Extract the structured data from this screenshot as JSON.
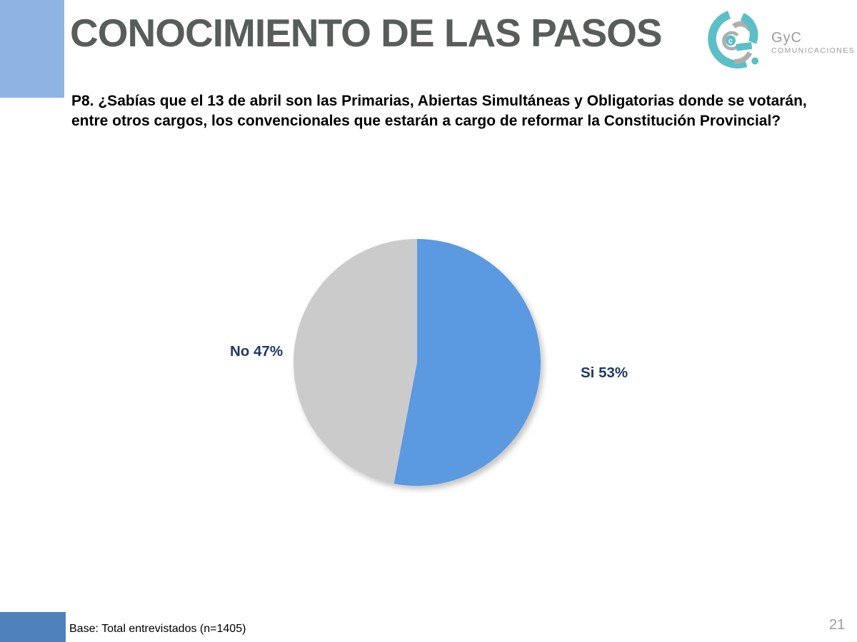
{
  "slide": {
    "title": "CONOCIMIENTO DE LAS PASOS",
    "page_number": "21"
  },
  "logo": {
    "name": "GyC",
    "subtitle": "COMUNICACIONES",
    "teal": "#5bbfc7",
    "gray": "#aeaeae"
  },
  "question": {
    "text": "P8. ¿Sabías que el 13 de abril son las Primarias, Abiertas Simultáneas y Obligatorias donde se votarán, entre otros cargos, los convencionales que estarán a cargo de reformar la Constitución Provincial?"
  },
  "chart_data": {
    "type": "pie",
    "title": "Conocimiento de las PASOS",
    "categories": [
      "Si",
      "No"
    ],
    "values": [
      53,
      47
    ],
    "series": [
      {
        "name": "Si",
        "value": 53,
        "label": "Si 53%",
        "color": "#5b99e0"
      },
      {
        "name": "No",
        "value": 47,
        "label": "No 47%",
        "color": "#cbcbcb"
      }
    ],
    "start_angle_deg": 0,
    "direction": "clockwise",
    "legend_position": "none",
    "data_labels": "outside"
  },
  "footer": {
    "base_text": "Base: Total entrevistados (n=1405)"
  },
  "colors": {
    "title_gray": "#585d59",
    "label_navy": "#1f3864",
    "corner_light_blue": "#8db4e2",
    "corner_medium_blue": "#4f81bd",
    "page_number_gray": "#9c9c9c",
    "pie_blue": "#5b99e0",
    "pie_gray": "#cbcbcb"
  }
}
